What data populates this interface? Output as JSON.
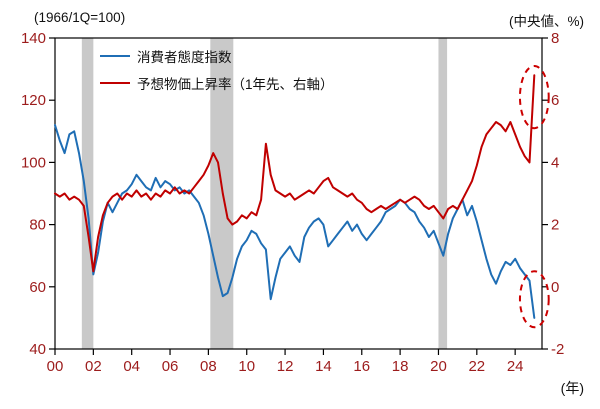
{
  "header": {
    "left_axis_note": "(1966/1Q=100)",
    "right_axis_note": "(中央値、%)",
    "x_axis_note": "(年)"
  },
  "legend": [
    {
      "label": "消費者態度指数",
      "color": "#1f6eb5"
    },
    {
      "label": "予想物価上昇率（1年先、右軸）",
      "color": "#c00000"
    }
  ],
  "colors": {
    "axis_labels": "#9c1c1c",
    "frame": "#000000",
    "recession_band": "#c9c9c9",
    "annotation": "#cc0000"
  },
  "chart_data": {
    "type": "line",
    "title": "",
    "x_domain": [
      2000,
      2025.4
    ],
    "x_start": 2000,
    "x_step": 0.25,
    "x_tick_years": [
      2000,
      2002,
      2004,
      2006,
      2008,
      2010,
      2012,
      2014,
      2016,
      2018,
      2020,
      2022,
      2024
    ],
    "x_tick_labels": [
      "00",
      "02",
      "04",
      "06",
      "08",
      "10",
      "12",
      "14",
      "16",
      "18",
      "20",
      "22",
      "24"
    ],
    "left_axis": {
      "note": "(1966/1Q=100)",
      "min": 40,
      "max": 140,
      "ticks": [
        140,
        120,
        100,
        80,
        60,
        40
      ]
    },
    "right_axis": {
      "note": "(中央値、%)",
      "min": -2,
      "max": 8,
      "ticks": [
        8,
        6,
        4,
        2,
        0,
        -2
      ]
    },
    "series": [
      {
        "name": "消費者態度指数",
        "axis": "left",
        "color": "#1f6eb5",
        "values": [
          112,
          107,
          103,
          109,
          110,
          103,
          94,
          82,
          64,
          71,
          81,
          87,
          84,
          87,
          90,
          91,
          93,
          96,
          94,
          92,
          91,
          95,
          92,
          94,
          93,
          91,
          92,
          90,
          91,
          89,
          87,
          83,
          77,
          70,
          63,
          57,
          58,
          63,
          69,
          73,
          75,
          78,
          77,
          74,
          72,
          56,
          63,
          69,
          71,
          73,
          70,
          68,
          76,
          79,
          81,
          82,
          80,
          73,
          75,
          77,
          79,
          81,
          78,
          80,
          77,
          75,
          77,
          79,
          81,
          84,
          85,
          86,
          88,
          87,
          85,
          84,
          81,
          79,
          76,
          78,
          74,
          70,
          77,
          82,
          85,
          88,
          83,
          86,
          81,
          75,
          69,
          64,
          61,
          65,
          68,
          67,
          69,
          66,
          64,
          62,
          50
        ]
      },
      {
        "name": "予想物価上昇率（1年先、右軸）",
        "axis": "right",
        "color": "#c00000",
        "values": [
          3.0,
          2.9,
          3.0,
          2.8,
          2.9,
          2.8,
          2.6,
          1.6,
          0.5,
          1.6,
          2.3,
          2.7,
          2.9,
          3.0,
          2.8,
          3.0,
          2.9,
          3.1,
          2.9,
          3.0,
          2.8,
          3.0,
          2.9,
          3.1,
          3.0,
          3.2,
          3.0,
          3.1,
          3.0,
          3.2,
          3.4,
          3.6,
          3.9,
          4.3,
          4.0,
          3.0,
          2.2,
          2.0,
          2.1,
          2.3,
          2.2,
          2.4,
          2.3,
          2.8,
          4.6,
          3.6,
          3.1,
          3.0,
          2.9,
          3.0,
          2.8,
          2.9,
          3.0,
          3.1,
          3.0,
          3.2,
          3.4,
          3.5,
          3.2,
          3.1,
          3.0,
          2.9,
          3.0,
          2.8,
          2.7,
          2.5,
          2.4,
          2.5,
          2.6,
          2.5,
          2.6,
          2.7,
          2.8,
          2.7,
          2.8,
          2.9,
          2.8,
          2.6,
          2.5,
          2.6,
          2.4,
          2.2,
          2.5,
          2.6,
          2.5,
          2.8,
          3.1,
          3.4,
          3.9,
          4.5,
          4.9,
          5.1,
          5.3,
          5.2,
          5.0,
          5.3,
          4.9,
          4.5,
          4.2,
          4.0,
          6.8
        ]
      }
    ],
    "recession_bands": [
      [
        2001.4,
        2002.0
      ],
      [
        2008.1,
        2009.3
      ],
      [
        2020.0,
        2020.45
      ]
    ],
    "annotations": [
      {
        "type": "dashed-ellipse",
        "axis": "right",
        "x": 2025.0,
        "value": 6.1,
        "rx_years": 0.75,
        "ry_units": 1.0
      },
      {
        "type": "dashed-ellipse",
        "axis": "left",
        "x": 2025.0,
        "value": 56,
        "rx_years": 0.75,
        "ry_units": 9
      }
    ]
  }
}
